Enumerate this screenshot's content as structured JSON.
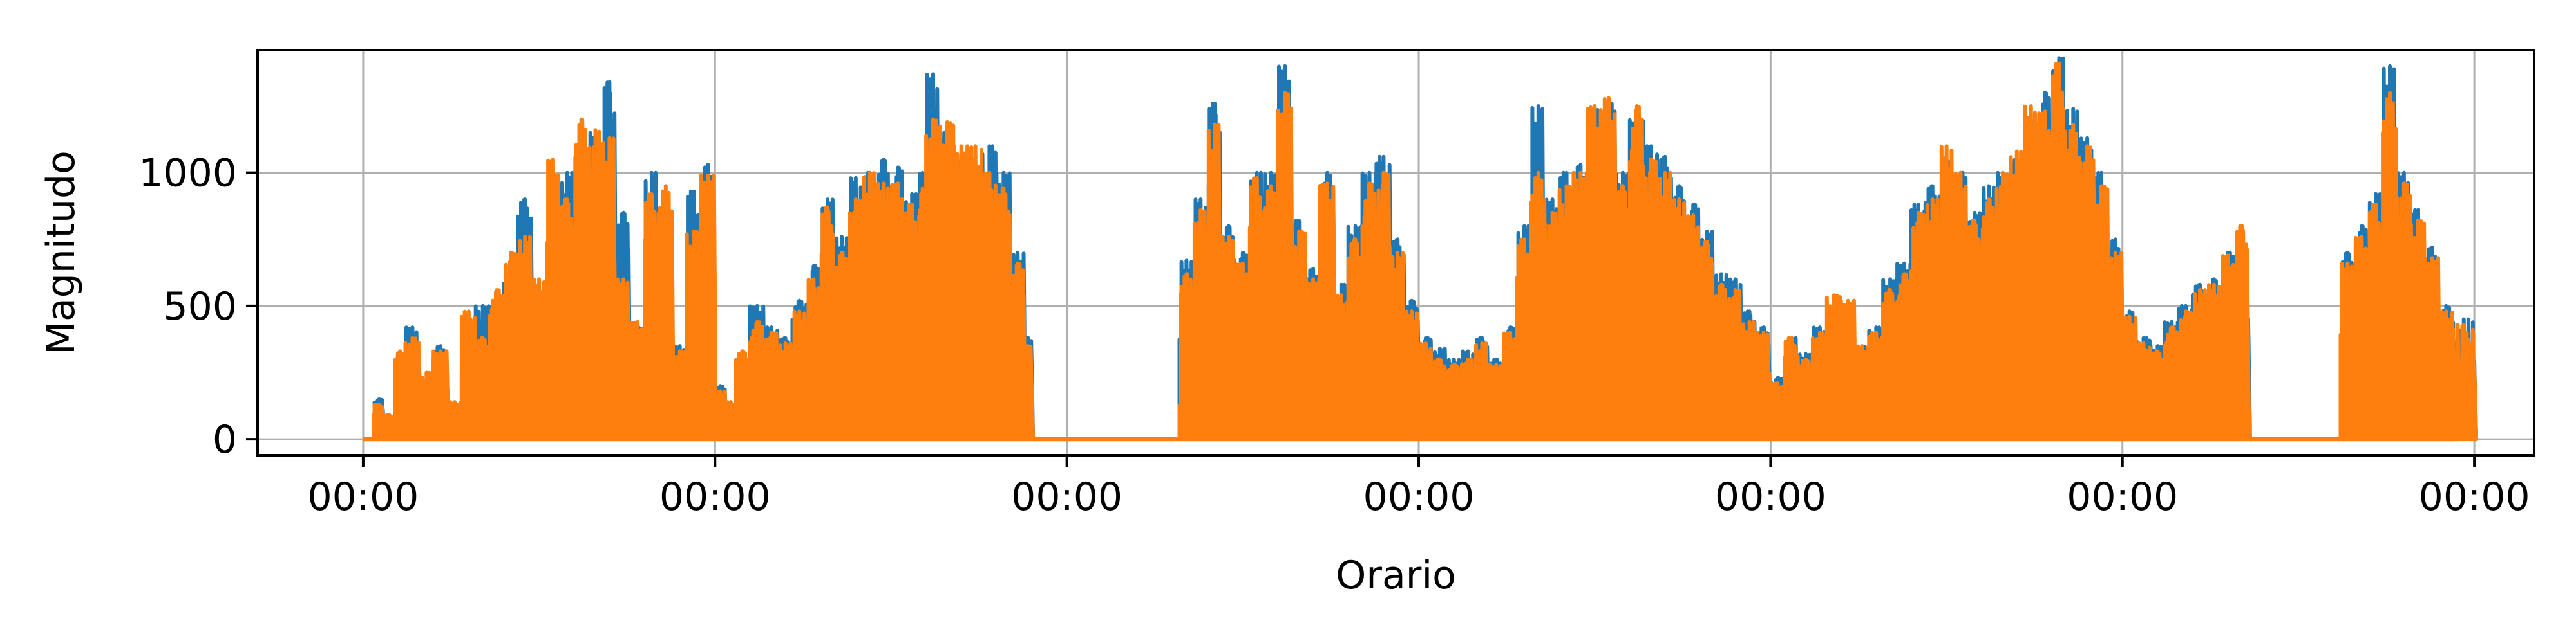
{
  "chart_data": {
    "type": "line",
    "title": "",
    "xlabel": "Orario",
    "ylabel": "Magnitudo",
    "ylim": [
      -60,
      1460
    ],
    "xlim": [
      -0.3,
      6.17
    ],
    "grid": true,
    "legend": "none",
    "x_ticks": [
      {
        "value": 0,
        "label": "00:00"
      },
      {
        "value": 1,
        "label": "00:00"
      },
      {
        "value": 2,
        "label": "00:00"
      },
      {
        "value": 3,
        "label": "00:00"
      },
      {
        "value": 4,
        "label": "00:00"
      },
      {
        "value": 5,
        "label": "00:00"
      },
      {
        "value": 6,
        "label": "00:00"
      }
    ],
    "y_ticks": [
      {
        "value": 0,
        "label": "0"
      },
      {
        "value": 500,
        "label": "500"
      },
      {
        "value": 1000,
        "label": "1000"
      }
    ],
    "series": [
      {
        "color": "#1f77b4",
        "points": [
          [
            0.0,
            0
          ],
          [
            0.03,
            150
          ],
          [
            0.06,
            80
          ],
          [
            0.09,
            300
          ],
          [
            0.12,
            420
          ],
          [
            0.16,
            200
          ],
          [
            0.2,
            350
          ],
          [
            0.24,
            120
          ],
          [
            0.28,
            260
          ],
          [
            0.32,
            500
          ],
          [
            0.36,
            300
          ],
          [
            0.4,
            600
          ],
          [
            0.44,
            900
          ],
          [
            0.48,
            520
          ],
          [
            0.52,
            650
          ],
          [
            0.56,
            1000
          ],
          [
            0.6,
            780
          ],
          [
            0.64,
            1150
          ],
          [
            0.68,
            1340
          ],
          [
            0.72,
            850
          ],
          [
            0.76,
            420
          ],
          [
            0.8,
            1000
          ],
          [
            0.84,
            700
          ],
          [
            0.88,
            350
          ],
          [
            0.92,
            930
          ],
          [
            0.96,
            1030
          ],
          [
            1.0,
            200
          ],
          [
            1.03,
            120
          ],
          [
            1.06,
            300
          ],
          [
            1.1,
            500
          ],
          [
            1.14,
            420
          ],
          [
            1.18,
            380
          ],
          [
            1.22,
            520
          ],
          [
            1.26,
            650
          ],
          [
            1.3,
            900
          ],
          [
            1.34,
            760
          ],
          [
            1.38,
            980
          ],
          [
            1.42,
            1000
          ],
          [
            1.46,
            1050
          ],
          [
            1.5,
            1020
          ],
          [
            1.54,
            920
          ],
          [
            1.58,
            1000
          ],
          [
            1.6,
            1370
          ],
          [
            1.64,
            1150
          ],
          [
            1.68,
            1050
          ],
          [
            1.72,
            1000
          ],
          [
            1.76,
            1100
          ],
          [
            1.8,
            1000
          ],
          [
            1.84,
            700
          ],
          [
            1.88,
            380
          ],
          [
            1.9,
            0
          ],
          [
            2.0,
            0
          ],
          [
            2.15,
            0
          ],
          [
            2.3,
            0
          ],
          [
            2.32,
            670
          ],
          [
            2.36,
            900
          ],
          [
            2.4,
            1260
          ],
          [
            2.44,
            800
          ],
          [
            2.48,
            700
          ],
          [
            2.52,
            1000
          ],
          [
            2.56,
            1000
          ],
          [
            2.6,
            1400
          ],
          [
            2.64,
            820
          ],
          [
            2.68,
            640
          ],
          [
            2.72,
            1000
          ],
          [
            2.76,
            580
          ],
          [
            2.8,
            800
          ],
          [
            2.84,
            1000
          ],
          [
            2.88,
            1060
          ],
          [
            2.92,
            750
          ],
          [
            2.96,
            520
          ],
          [
            3.0,
            380
          ],
          [
            3.04,
            340
          ],
          [
            3.08,
            300
          ],
          [
            3.12,
            330
          ],
          [
            3.16,
            380
          ],
          [
            3.2,
            300
          ],
          [
            3.24,
            420
          ],
          [
            3.28,
            800
          ],
          [
            3.32,
            1250
          ],
          [
            3.36,
            900
          ],
          [
            3.4,
            1000
          ],
          [
            3.44,
            1030
          ],
          [
            3.48,
            1250
          ],
          [
            3.52,
            1260
          ],
          [
            3.56,
            1000
          ],
          [
            3.6,
            1200
          ],
          [
            3.64,
            1100
          ],
          [
            3.68,
            1060
          ],
          [
            3.72,
            950
          ],
          [
            3.76,
            880
          ],
          [
            3.8,
            780
          ],
          [
            3.84,
            620
          ],
          [
            3.88,
            600
          ],
          [
            3.92,
            480
          ],
          [
            3.96,
            420
          ],
          [
            4.0,
            230
          ],
          [
            4.04,
            380
          ],
          [
            4.08,
            320
          ],
          [
            4.12,
            420
          ],
          [
            4.16,
            300
          ],
          [
            4.2,
            280
          ],
          [
            4.24,
            350
          ],
          [
            4.28,
            420
          ],
          [
            4.32,
            600
          ],
          [
            4.36,
            660
          ],
          [
            4.4,
            880
          ],
          [
            4.44,
            950
          ],
          [
            4.48,
            1050
          ],
          [
            4.52,
            1000
          ],
          [
            4.56,
            850
          ],
          [
            4.6,
            950
          ],
          [
            4.64,
            1000
          ],
          [
            4.68,
            1050
          ],
          [
            4.72,
            1200
          ],
          [
            4.76,
            1300
          ],
          [
            4.8,
            1430
          ],
          [
            4.84,
            1240
          ],
          [
            4.88,
            1130
          ],
          [
            4.92,
            1000
          ],
          [
            4.96,
            750
          ],
          [
            5.0,
            480
          ],
          [
            5.04,
            380
          ],
          [
            5.08,
            350
          ],
          [
            5.12,
            440
          ],
          [
            5.16,
            500
          ],
          [
            5.2,
            580
          ],
          [
            5.24,
            600
          ],
          [
            5.28,
            700
          ],
          [
            5.32,
            680
          ],
          [
            5.36,
            0
          ],
          [
            5.5,
            0
          ],
          [
            5.6,
            0
          ],
          [
            5.62,
            700
          ],
          [
            5.66,
            800
          ],
          [
            5.7,
            920
          ],
          [
            5.74,
            1400
          ],
          [
            5.78,
            1000
          ],
          [
            5.82,
            860
          ],
          [
            5.86,
            720
          ],
          [
            5.9,
            500
          ],
          [
            5.94,
            450
          ],
          [
            6.0,
            290
          ]
        ]
      },
      {
        "color": "#ff7f0e",
        "points": [
          [
            0.0,
            0
          ],
          [
            0.03,
            130
          ],
          [
            0.06,
            90
          ],
          [
            0.09,
            330
          ],
          [
            0.12,
            380
          ],
          [
            0.16,
            250
          ],
          [
            0.2,
            330
          ],
          [
            0.24,
            140
          ],
          [
            0.28,
            480
          ],
          [
            0.32,
            380
          ],
          [
            0.36,
            560
          ],
          [
            0.4,
            700
          ],
          [
            0.44,
            760
          ],
          [
            0.48,
            600
          ],
          [
            0.52,
            1050
          ],
          [
            0.56,
            900
          ],
          [
            0.6,
            1200
          ],
          [
            0.64,
            1160
          ],
          [
            0.68,
            1130
          ],
          [
            0.72,
            600
          ],
          [
            0.76,
            440
          ],
          [
            0.8,
            920
          ],
          [
            0.84,
            950
          ],
          [
            0.88,
            330
          ],
          [
            0.92,
            780
          ],
          [
            0.96,
            990
          ],
          [
            1.0,
            180
          ],
          [
            1.03,
            140
          ],
          [
            1.06,
            330
          ],
          [
            1.1,
            440
          ],
          [
            1.14,
            400
          ],
          [
            1.18,
            360
          ],
          [
            1.22,
            480
          ],
          [
            1.26,
            600
          ],
          [
            1.3,
            870
          ],
          [
            1.34,
            700
          ],
          [
            1.38,
            900
          ],
          [
            1.42,
            1000
          ],
          [
            1.46,
            960
          ],
          [
            1.5,
            960
          ],
          [
            1.54,
            880
          ],
          [
            1.58,
            940
          ],
          [
            1.6,
            1200
          ],
          [
            1.64,
            1190
          ],
          [
            1.68,
            1100
          ],
          [
            1.72,
            1100
          ],
          [
            1.76,
            1000
          ],
          [
            1.8,
            940
          ],
          [
            1.84,
            660
          ],
          [
            1.88,
            350
          ],
          [
            1.9,
            0
          ],
          [
            2.0,
            0
          ],
          [
            2.15,
            0
          ],
          [
            2.3,
            0
          ],
          [
            2.32,
            620
          ],
          [
            2.36,
            860
          ],
          [
            2.4,
            1180
          ],
          [
            2.44,
            760
          ],
          [
            2.48,
            660
          ],
          [
            2.52,
            980
          ],
          [
            2.56,
            950
          ],
          [
            2.6,
            1300
          ],
          [
            2.64,
            780
          ],
          [
            2.68,
            600
          ],
          [
            2.72,
            960
          ],
          [
            2.76,
            540
          ],
          [
            2.8,
            750
          ],
          [
            2.84,
            960
          ],
          [
            2.88,
            1000
          ],
          [
            2.92,
            700
          ],
          [
            2.96,
            480
          ],
          [
            3.0,
            360
          ],
          [
            3.04,
            300
          ],
          [
            3.08,
            280
          ],
          [
            3.12,
            300
          ],
          [
            3.16,
            360
          ],
          [
            3.2,
            280
          ],
          [
            3.24,
            400
          ],
          [
            3.28,
            750
          ],
          [
            3.32,
            1000
          ],
          [
            3.36,
            850
          ],
          [
            3.4,
            950
          ],
          [
            3.44,
            1000
          ],
          [
            3.48,
            1250
          ],
          [
            3.52,
            1280
          ],
          [
            3.56,
            950
          ],
          [
            3.6,
            1250
          ],
          [
            3.64,
            1050
          ],
          [
            3.68,
            1000
          ],
          [
            3.72,
            900
          ],
          [
            3.76,
            840
          ],
          [
            3.8,
            740
          ],
          [
            3.84,
            580
          ],
          [
            3.88,
            560
          ],
          [
            3.92,
            440
          ],
          [
            3.96,
            400
          ],
          [
            4.0,
            210
          ],
          [
            4.04,
            380
          ],
          [
            4.08,
            300
          ],
          [
            4.12,
            400
          ],
          [
            4.16,
            540
          ],
          [
            4.2,
            520
          ],
          [
            4.24,
            350
          ],
          [
            4.28,
            400
          ],
          [
            4.32,
            560
          ],
          [
            4.36,
            620
          ],
          [
            4.4,
            850
          ],
          [
            4.44,
            900
          ],
          [
            4.48,
            1100
          ],
          [
            4.52,
            1000
          ],
          [
            4.56,
            820
          ],
          [
            4.6,
            900
          ],
          [
            4.64,
            1000
          ],
          [
            4.68,
            1080
          ],
          [
            4.72,
            1250
          ],
          [
            4.76,
            1230
          ],
          [
            4.8,
            1410
          ],
          [
            4.84,
            1180
          ],
          [
            4.88,
            1100
          ],
          [
            4.92,
            950
          ],
          [
            4.96,
            700
          ],
          [
            5.0,
            460
          ],
          [
            5.04,
            360
          ],
          [
            5.08,
            330
          ],
          [
            5.12,
            420
          ],
          [
            5.16,
            480
          ],
          [
            5.2,
            560
          ],
          [
            5.24,
            580
          ],
          [
            5.28,
            690
          ],
          [
            5.32,
            800
          ],
          [
            5.36,
            0
          ],
          [
            5.5,
            0
          ],
          [
            5.6,
            0
          ],
          [
            5.62,
            660
          ],
          [
            5.66,
            760
          ],
          [
            5.7,
            880
          ],
          [
            5.74,
            1300
          ],
          [
            5.78,
            960
          ],
          [
            5.82,
            820
          ],
          [
            5.86,
            680
          ],
          [
            5.9,
            480
          ],
          [
            5.94,
            430
          ],
          [
            6.0,
            270
          ]
        ]
      }
    ]
  }
}
